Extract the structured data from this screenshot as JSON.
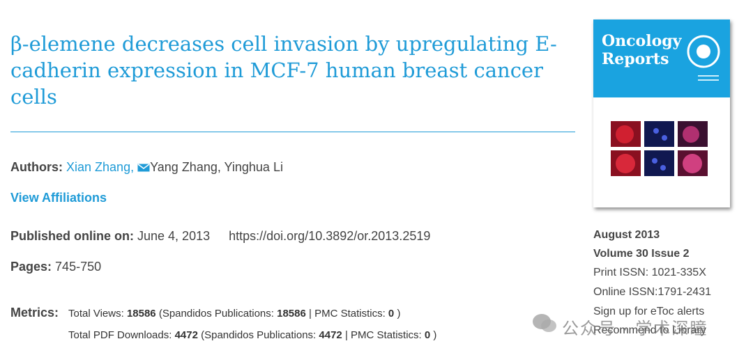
{
  "article": {
    "title": "β-elemene decreases cell invasion by upregulating E-cadherin expression in MCF-7 human breast cancer cells",
    "authors": {
      "label": "Authors:",
      "names": [
        "Xian Zhang,",
        "Yang Zhang,",
        "Yinghua Li"
      ]
    },
    "view_affiliations": "View Affiliations",
    "published": {
      "label": "Published online on:",
      "date": "June 4, 2013",
      "doi": "https://doi.org/10.3892/or.2013.2519"
    },
    "pages": {
      "label": "Pages:",
      "value": "745-750"
    },
    "metrics": {
      "label": "Metrics:",
      "rows": [
        [
          "Total Views:",
          18586,
          "(Spandidos Publications:",
          18586,
          "| PMC Statistics:",
          0,
          ")"
        ],
        [
          "Total PDF Downloads:",
          4472,
          "(Spandidos Publications:",
          4472,
          "| PMC Statistics:",
          0,
          ")"
        ]
      ]
    }
  },
  "sidebar": {
    "cover_title": "Oncology Reports",
    "issue_date": "August 2013",
    "volume": "Volume 30 Issue 2",
    "print_issn": "Print ISSN: 1021-335X",
    "online_issn": "Online ISSN:1791-2431",
    "links": [
      "Sign up for eToc alerts",
      "Recommend to Library"
    ]
  },
  "watermark": "公众号 · 学术深瞳"
}
